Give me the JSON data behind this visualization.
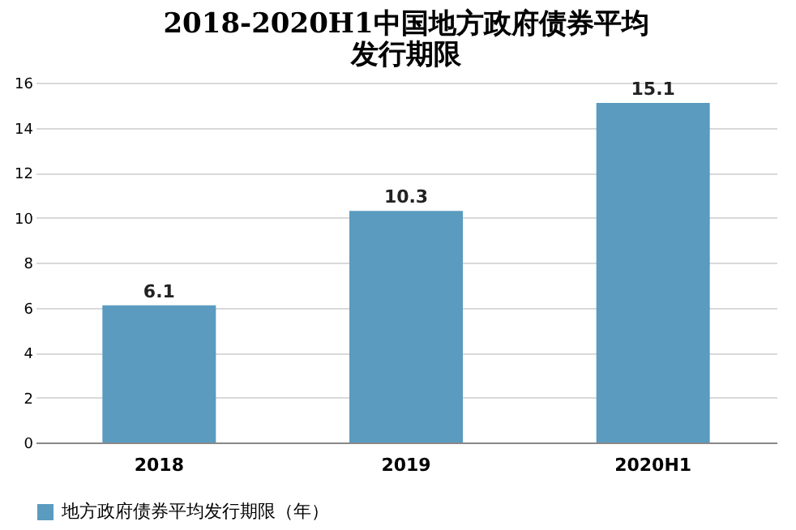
{
  "chart_data": {
    "type": "bar",
    "title": "2018-2020H1中国地方政府债券平均发行期限",
    "categories": [
      "2018",
      "2019",
      "2020H1"
    ],
    "series": [
      {
        "name": "地方政府债券平均发行期限（年）",
        "color": "#5a9bbf",
        "values": [
          6.1,
          10.3,
          15.1
        ]
      }
    ],
    "ylim": [
      0,
      16
    ],
    "yticks": [
      0,
      2,
      4,
      6,
      8,
      10,
      12,
      14,
      16
    ],
    "grid": "y",
    "legend": "bottom",
    "data_labels": true
  }
}
